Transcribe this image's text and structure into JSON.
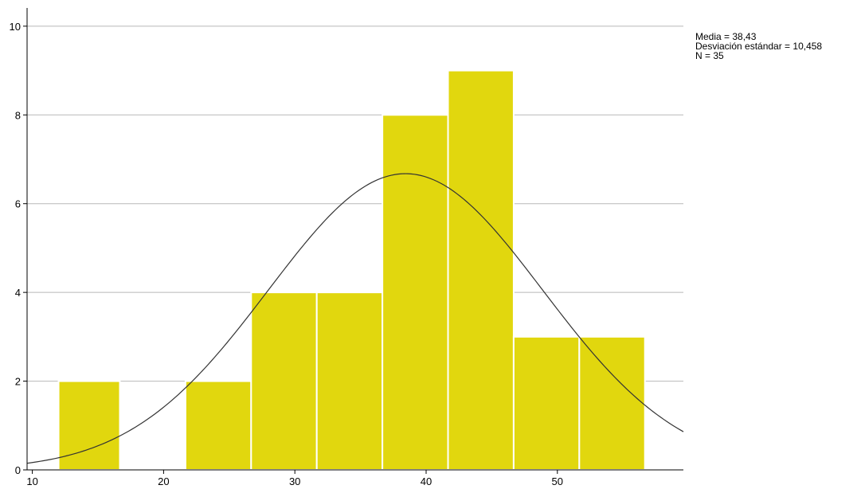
{
  "chart_data": {
    "type": "bar",
    "subtype": "histogram",
    "bins": [
      {
        "x0": 12,
        "x1": 16.67,
        "value": 2
      },
      {
        "x0": 16.67,
        "x1": 21.67,
        "value": 0
      },
      {
        "x0": 21.67,
        "x1": 26.67,
        "value": 2
      },
      {
        "x0": 26.67,
        "x1": 31.67,
        "value": 4
      },
      {
        "x0": 31.67,
        "x1": 36.67,
        "value": 4
      },
      {
        "x0": 36.67,
        "x1": 41.67,
        "value": 8
      },
      {
        "x0": 41.67,
        "x1": 46.67,
        "value": 9
      },
      {
        "x0": 46.67,
        "x1": 51.67,
        "value": 3
      },
      {
        "x0": 51.67,
        "x1": 56.67,
        "value": 3
      }
    ],
    "normal_curve": {
      "mean": 38.43,
      "sd": 10.458,
      "n": 35,
      "bin_width": 5
    },
    "xlim": [
      9.6,
      59.6
    ],
    "ylim": [
      0,
      10.5
    ],
    "xticks": [
      10,
      20,
      30,
      40,
      50
    ],
    "yticks": [
      0,
      2,
      4,
      6,
      8,
      10
    ],
    "grid": "horizontal",
    "bar_color": "#e1d70e",
    "bar_edge_color": "#ffffff",
    "curve_color": "#333333",
    "title": "",
    "xlabel": "",
    "ylabel": ""
  },
  "stats": {
    "mean": "Media = 38,43",
    "sd": "Desviación estándar = 10,458",
    "n": "N = 35"
  }
}
